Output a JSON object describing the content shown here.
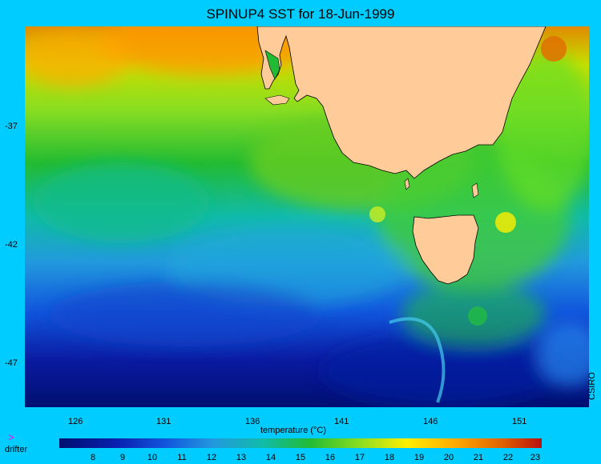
{
  "title": "SPINUP4 SST for 18-Jun-1999",
  "lat_labels": [
    "-37",
    "-42",
    "-47"
  ],
  "lon_labels": [
    "126",
    "131",
    "136",
    "141",
    "146",
    "151"
  ],
  "colorbar": {
    "label": "temperature (°C)",
    "ticks": [
      "8",
      "9",
      "10",
      "11",
      "12",
      "13",
      "14",
      "15",
      "16",
      "17",
      "18",
      "19",
      "20",
      "21",
      "22",
      "23"
    ]
  },
  "legend": {
    "drifter_symbol": ">",
    "drifter_label": "drifter"
  },
  "credit": "CSIRO",
  "colors": {
    "background": "#00ccff",
    "land": "#ffcc99",
    "coast": "#000000"
  }
}
